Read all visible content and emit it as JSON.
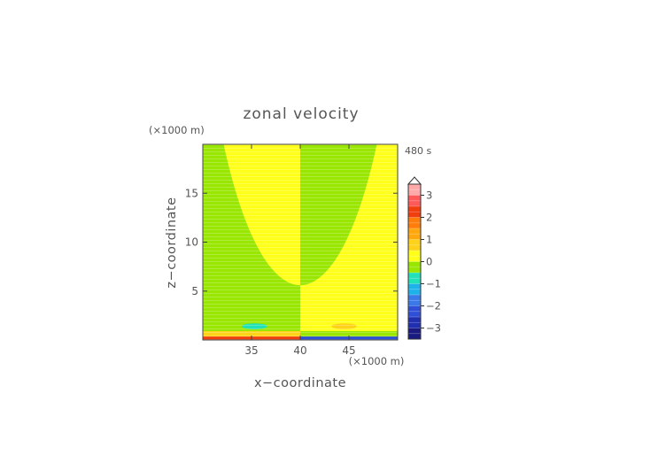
{
  "chart_data": {
    "type": "heatmap",
    "title": "zonal velocity",
    "time_label": "480 s",
    "xlabel": "x−coordinate",
    "ylabel": "z−coordinate",
    "x_unit": "(×1000 m)",
    "z_unit": "(×1000 m)",
    "xlim": [
      30,
      50
    ],
    "ylim": [
      0,
      20
    ],
    "xticks": [
      {
        "value": 35,
        "label": "35"
      },
      {
        "value": 40,
        "label": "40"
      },
      {
        "value": 45,
        "label": "45"
      }
    ],
    "yticks": [
      {
        "value": 5,
        "label": "5"
      },
      {
        "value": 10,
        "label": "10"
      },
      {
        "value": 15,
        "label": "15"
      }
    ],
    "colorbar": {
      "vmin": -3.5,
      "vmax": 3.5,
      "step": 0.5,
      "extend": "max",
      "levels": [
        {
          "value": -3.25,
          "color": "#1a1a80"
        },
        {
          "value": -2.75,
          "color": "#1f2fb0"
        },
        {
          "value": -2.25,
          "color": "#2f4fd6"
        },
        {
          "value": -1.75,
          "color": "#3a79e8"
        },
        {
          "value": -1.25,
          "color": "#1fb2ea"
        },
        {
          "value": -0.75,
          "color": "#22e0b8"
        },
        {
          "value": -0.25,
          "color": "#99e600"
        },
        {
          "value": 0.25,
          "color": "#ffff1a"
        },
        {
          "value": 0.75,
          "color": "#ffd21a"
        },
        {
          "value": 1.25,
          "color": "#ffa70f"
        },
        {
          "value": 1.75,
          "color": "#ff7d0a"
        },
        {
          "value": 2.25,
          "color": "#f03e0f"
        },
        {
          "value": 2.75,
          "color": "#ff5a5a"
        },
        {
          "value": 3.25,
          "color": "#ffaaaa"
        }
      ],
      "ticks": [
        {
          "value": 3,
          "label": "3"
        },
        {
          "value": 2,
          "label": "2"
        },
        {
          "value": 1,
          "label": "1"
        },
        {
          "value": 0,
          "label": "0"
        },
        {
          "value": -1,
          "label": "−1"
        },
        {
          "value": -2,
          "label": "−2"
        },
        {
          "value": -3,
          "label": "−3"
        }
      ]
    },
    "field": {
      "background_left": 0.25,
      "background_right": -0.25,
      "dome": {
        "center_x": 40,
        "radius_x": 10.5,
        "base_z": 0.9,
        "top_z": 5.6,
        "inside_left": -0.25,
        "inside_right": 0.25
      },
      "ellipses": [
        {
          "cx": 35.3,
          "cz": 1.4,
          "rx": 1.3,
          "rz": 0.3,
          "value": -0.75
        },
        {
          "cx": 44.5,
          "cz": 1.4,
          "rx": 1.3,
          "rz": 0.3,
          "value": 0.75
        }
      ],
      "surface_strips": [
        {
          "x0": 30,
          "x1": 40,
          "z0": 0.35,
          "z1": 0.9,
          "value": 0.75
        },
        {
          "x0": 40,
          "x1": 50,
          "z0": 0.35,
          "z1": 0.9,
          "value": -0.25
        },
        {
          "x0": 30,
          "x1": 40,
          "z0": 0,
          "z1": 0.35,
          "value": 2.25
        },
        {
          "x0": 40,
          "x1": 50,
          "z0": 0,
          "z1": 0.35,
          "value": -2.25
        }
      ]
    }
  }
}
